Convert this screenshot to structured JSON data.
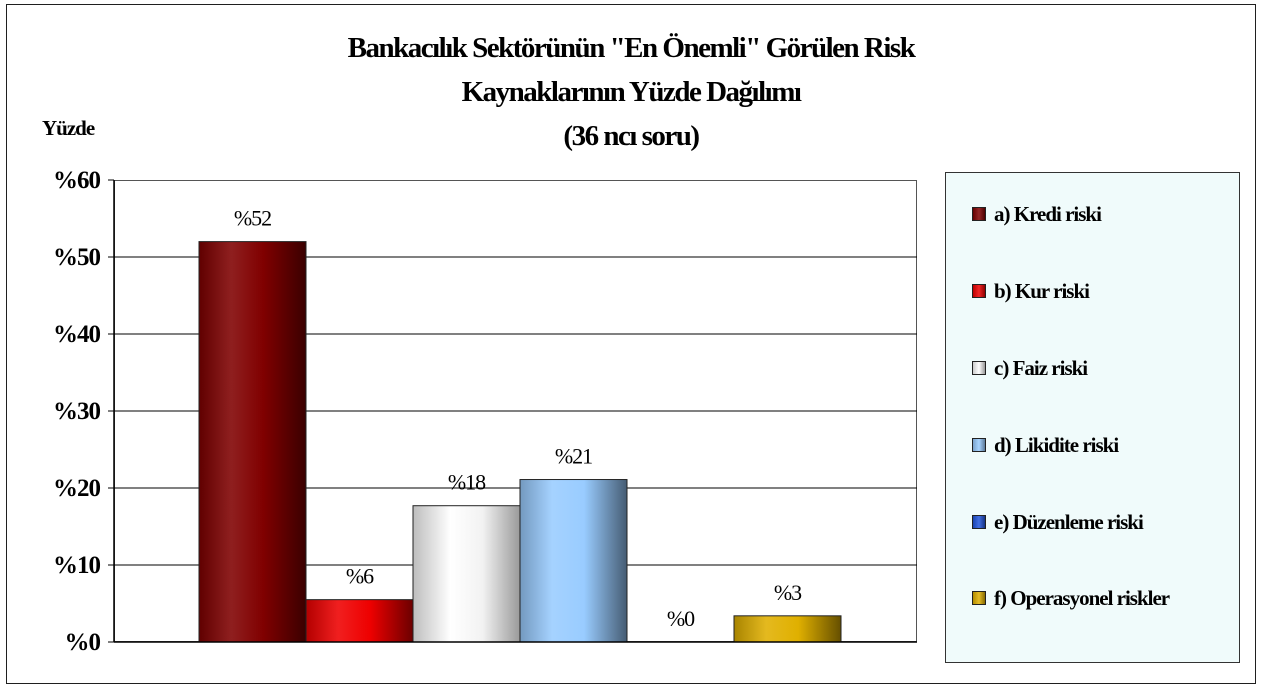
{
  "chart_data": {
    "type": "bar",
    "title_lines": [
      "Bankacılık Sektörünün \"En Önemli\" Görülen Risk",
      "Kaynaklarının Yüzde Dağılımı",
      "(36 ncı soru)"
    ],
    "ylabel": "Yüzde",
    "ylim": [
      0,
      60
    ],
    "yticks": [
      0,
      10,
      20,
      30,
      40,
      50,
      60
    ],
    "ytick_labels": [
      "%0",
      "%10",
      "%20",
      "%30",
      "%40",
      "%50",
      "%60"
    ],
    "grid": true,
    "legend_position": "right",
    "series": [
      {
        "name": "a) Kredi riski",
        "value": 52,
        "label": "%52",
        "color": "#800000"
      },
      {
        "name": "b) Kur riski",
        "value": 5.5,
        "label": "%6",
        "color": "#ee0000"
      },
      {
        "name": "c) Faiz riski",
        "value": 17.7,
        "label": "%18",
        "color": "#ffffff"
      },
      {
        "name": "d) Likidite riski",
        "value": 21.1,
        "label": "%21",
        "color": "#99ccff"
      },
      {
        "name": "e) Düzenleme riski",
        "value": 0,
        "label": "%0",
        "color": "#2255dd"
      },
      {
        "name": "f) Operasyonel riskler",
        "value": 3.4,
        "label": "%3",
        "color": "#e0b000"
      }
    ]
  }
}
